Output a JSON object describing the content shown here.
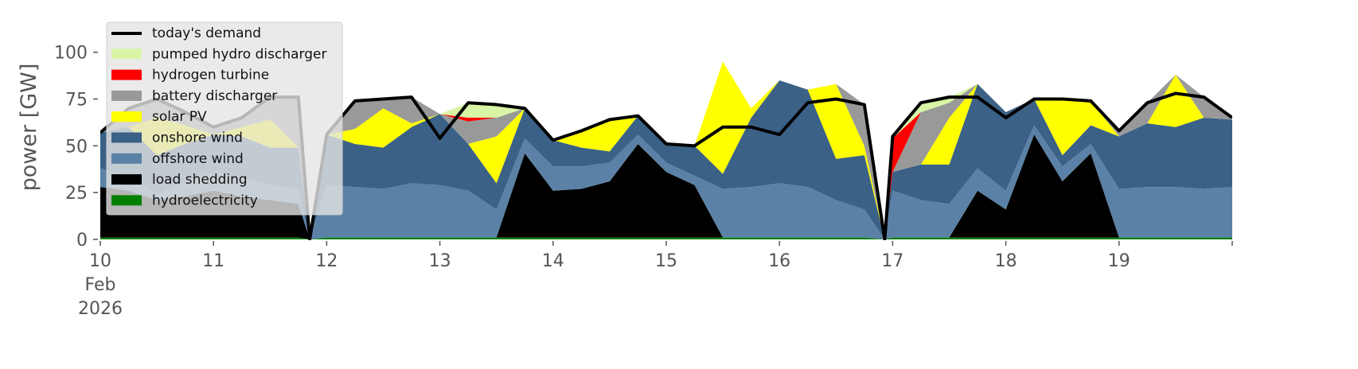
{
  "chart_data": {
    "type": "stacked_area",
    "y_label": "power [GW]",
    "x": [
      10,
      10.25,
      10.5,
      10.75,
      11,
      11.25,
      11.5,
      11.75,
      11.85,
      12,
      12.25,
      12.5,
      12.75,
      13,
      13.25,
      13.5,
      13.75,
      14,
      14.25,
      14.5,
      14.75,
      15,
      15.25,
      15.5,
      15.75,
      16,
      16.25,
      16.5,
      16.75,
      16.93,
      17,
      17.25,
      17.5,
      17.75,
      18,
      18.25,
      18.5,
      18.75,
      19,
      19.25,
      19.5,
      19.75,
      20
    ],
    "xlim": [
      10,
      20
    ],
    "xticks": [
      {
        "value": 10,
        "label": "10\nFeb\n2026"
      },
      11,
      12,
      13,
      14,
      15,
      16,
      17,
      18,
      19
    ],
    "ylim": [
      0,
      116
    ],
    "yticks": [
      0,
      25,
      50,
      75,
      100
    ],
    "grid": false,
    "legend": "upper left",
    "series": [
      {
        "name": "hydroelectricity",
        "color": "#008000",
        "values": [
          1,
          1,
          1,
          1,
          1,
          1,
          1,
          1,
          0,
          1,
          1,
          1,
          1,
          1,
          1,
          1,
          1,
          1,
          1,
          1,
          1,
          1,
          1,
          1,
          1,
          1,
          1,
          1,
          1,
          0,
          1,
          1,
          1,
          1,
          1,
          1,
          1,
          1,
          1,
          1,
          1,
          1,
          1
        ]
      },
      {
        "name": "load shedding",
        "color": "#000000",
        "values": [
          27,
          25,
          20,
          22,
          25,
          22,
          20,
          18,
          0,
          0,
          0,
          0,
          0,
          0,
          0,
          0,
          45,
          25,
          26,
          30,
          50,
          35,
          28,
          0,
          0,
          0,
          0,
          0,
          0,
          0,
          0,
          0,
          0,
          25,
          15,
          55,
          30,
          45,
          0,
          0,
          0,
          0,
          0
        ]
      },
      {
        "name": "offshore wind",
        "color": "#5b82a6",
        "values": [
          10,
          8,
          3,
          8,
          10,
          10,
          8,
          8,
          0,
          28,
          27,
          26,
          29,
          28,
          25,
          15,
          8,
          13,
          12,
          10,
          5,
          5,
          5,
          26,
          27,
          29,
          27,
          20,
          15,
          0,
          25,
          20,
          18,
          12,
          10,
          5,
          8,
          5,
          26,
          27,
          27,
          26,
          27
        ]
      },
      {
        "name": "onshore wind",
        "color": "#3b6186",
        "values": [
          19,
          26,
          21,
          20,
          20,
          22,
          20,
          22,
          0,
          27,
          23,
          22,
          30,
          38,
          25,
          14,
          16,
          14,
          10,
          6,
          10,
          10,
          16,
          8,
          37,
          55,
          52,
          22,
          29,
          0,
          10,
          19,
          21,
          45,
          42,
          14,
          6,
          10,
          28,
          34,
          32,
          38,
          36
        ]
      },
      {
        "name": "solar PV",
        "color": "#ffff00",
        "values": [
          0,
          0,
          20,
          10,
          0,
          5,
          15,
          0,
          0,
          0,
          8,
          21,
          2,
          0,
          0,
          25,
          0,
          0,
          9,
          17,
          0,
          0,
          0,
          60,
          5,
          0,
          0,
          40,
          5,
          0,
          0,
          0,
          25,
          0,
          0,
          0,
          30,
          13,
          0,
          0,
          28,
          0,
          0
        ]
      },
      {
        "name": "battery discharger",
        "color": "#999999",
        "values": [
          0,
          10,
          10,
          7,
          4,
          5,
          12,
          27,
          0,
          0,
          15,
          5,
          14,
          0,
          12,
          10,
          0,
          0,
          0,
          0,
          0,
          0,
          0,
          0,
          0,
          0,
          0,
          0,
          22,
          0,
          0,
          28,
          8,
          0,
          0,
          0,
          0,
          0,
          3,
          11,
          0,
          11,
          0
        ]
      },
      {
        "name": "hydrogen turbine",
        "color": "#ff0000",
        "values": [
          0,
          0,
          0,
          0,
          0,
          0,
          0,
          0,
          0,
          0,
          0,
          0,
          0,
          0,
          2,
          0,
          0,
          0,
          0,
          0,
          0,
          0,
          0,
          0,
          0,
          0,
          0,
          0,
          0,
          0,
          18,
          0,
          0,
          0,
          0,
          0,
          0,
          0,
          0,
          0,
          0,
          0,
          0
        ]
      },
      {
        "name": "pumped hydro discharger",
        "color": "#d8f5a6",
        "values": [
          0,
          0,
          0,
          0,
          0,
          0,
          0,
          0,
          0,
          0,
          0,
          0,
          0,
          0,
          8,
          7,
          0,
          0,
          0,
          0,
          0,
          0,
          0,
          0,
          0,
          0,
          0,
          0,
          0,
          0,
          0,
          5,
          3,
          0,
          0,
          0,
          0,
          0,
          0,
          0,
          0,
          0,
          0
        ]
      },
      {
        "name": "today's demand",
        "type": "line",
        "color": "#000000",
        "values": [
          57,
          70,
          75,
          68,
          60,
          65,
          76,
          76,
          0,
          56,
          74,
          75,
          76,
          54,
          73,
          72,
          70,
          53,
          58,
          64,
          66,
          51,
          50,
          60,
          60,
          56,
          73,
          75,
          72,
          0,
          55,
          73,
          76,
          76,
          65,
          75,
          75,
          74,
          58,
          73,
          78,
          76,
          65
        ]
      }
    ]
  }
}
